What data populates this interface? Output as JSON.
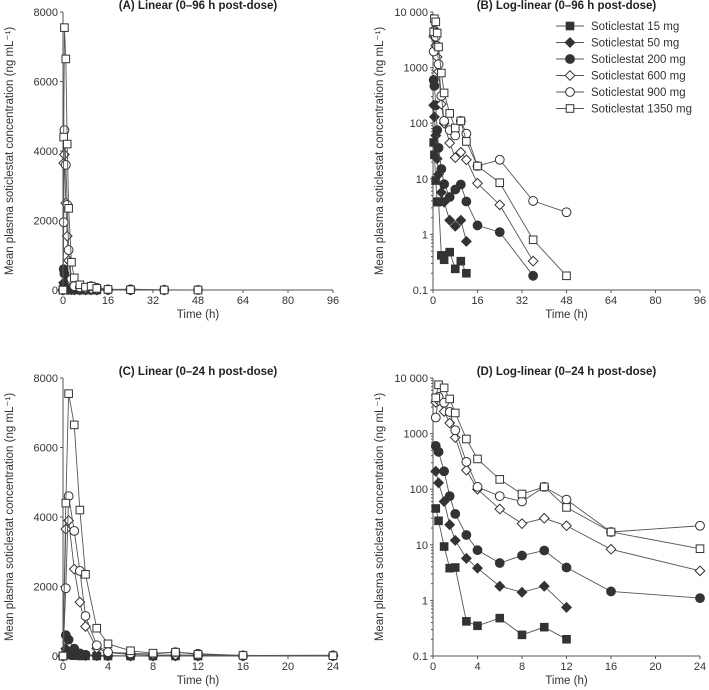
{
  "chart_data": [
    {
      "type": "line",
      "title": "(A) Linear (0–96 h post-dose)",
      "xlabel": "Time (h)",
      "ylabel": "Mean plasma soticlestat concentration (ng mL⁻¹)",
      "scale": "linear",
      "xlim": [
        0,
        96
      ],
      "ylim": [
        0,
        8000
      ],
      "xticks": [
        0,
        16,
        32,
        48,
        64,
        80,
        96
      ],
      "yticks": [
        0,
        2000,
        4000,
        6000,
        8000
      ],
      "ytick_labels": [
        "0",
        "2000",
        "4000",
        "6000",
        "8000"
      ]
    },
    {
      "type": "line",
      "title": "(B) Log-linear (0–96 h post-dose)",
      "xlabel": "Time (h)",
      "ylabel": "Mean plasma soticlestat concentration (ng mL⁻¹)",
      "scale": "log",
      "xlim": [
        0,
        96
      ],
      "ylim": [
        0.1,
        10000
      ],
      "xticks": [
        0,
        16,
        32,
        48,
        64,
        80,
        96
      ],
      "yticks": [
        0.1,
        1,
        10,
        100,
        1000,
        10000
      ],
      "ytick_labels": [
        "0.1",
        "1",
        "10",
        "100",
        "1000",
        "10 000"
      ],
      "legend": "top-right"
    },
    {
      "type": "line",
      "title": "(C) Linear (0–24 h post-dose)",
      "xlabel": "Time (h)",
      "ylabel": "Mean plasma soticlestat concentration (ng mL⁻¹)",
      "scale": "linear",
      "xlim": [
        0,
        24
      ],
      "ylim": [
        0,
        8000
      ],
      "xticks": [
        0,
        4,
        8,
        12,
        16,
        20,
        24
      ],
      "yticks": [
        0,
        2000,
        4000,
        6000,
        8000
      ],
      "ytick_labels": [
        "0",
        "2000",
        "4000",
        "6000",
        "8000"
      ]
    },
    {
      "type": "line",
      "title": "(D) Log-linear (0–24 h post-dose)",
      "xlabel": "Time (h)",
      "ylabel": "Mean plasma soticlestat concentration (ng mL⁻¹)",
      "scale": "log",
      "xlim": [
        0,
        24
      ],
      "ylim": [
        0.1,
        10000
      ],
      "xticks": [
        0,
        4,
        8,
        12,
        16,
        20,
        24
      ],
      "yticks": [
        0.1,
        1,
        10,
        100,
        1000,
        10000
      ],
      "ytick_labels": [
        "0.1",
        "1",
        "10",
        "100",
        "1000",
        "10 000"
      ]
    }
  ],
  "series": [
    {
      "name": "Soticlestat 15 mg",
      "marker": "square",
      "fill": "#333333",
      "x": [
        0,
        0.25,
        0.5,
        1,
        1.5,
        2,
        3,
        4,
        6,
        8,
        10,
        12
      ],
      "y": [
        0,
        45,
        27,
        9.3,
        3.8,
        3.9,
        0.42,
        0.35,
        0.48,
        0.24,
        0.33,
        0.2
      ]
    },
    {
      "name": "Soticlestat 50 mg",
      "marker": "diamond",
      "fill": "#333333",
      "x": [
        0,
        0.25,
        0.5,
        1,
        1.5,
        2,
        3,
        4,
        6,
        8,
        10,
        12
      ],
      "y": [
        0,
        210,
        130,
        60,
        23,
        12,
        5.7,
        3.8,
        1.8,
        1.4,
        1.8,
        0.75
      ]
    },
    {
      "name": "Soticlestat 200 mg",
      "marker": "circle",
      "fill": "#333333",
      "x": [
        0,
        0.25,
        0.5,
        1,
        1.5,
        2,
        3,
        4,
        6,
        8,
        10,
        12,
        16,
        24,
        36
      ],
      "y": [
        0,
        600,
        470,
        210,
        75,
        36,
        15,
        8,
        4.7,
        6.4,
        7.9,
        3.9,
        1.45,
        1.1,
        0.18
      ]
    },
    {
      "name": "Soticlestat 600 mg",
      "marker": "diamond",
      "fill": "#ffffff",
      "x": [
        0,
        0.25,
        0.5,
        1,
        1.5,
        2,
        3,
        4,
        6,
        8,
        10,
        12,
        16,
        24,
        36
      ],
      "y": [
        0,
        3650,
        3900,
        2500,
        1550,
        850,
        220,
        100,
        44,
        24,
        30,
        22,
        8.3,
        3.4,
        0.33
      ]
    },
    {
      "name": "Soticlestat 900 mg",
      "marker": "circle",
      "fill": "#ffffff",
      "x": [
        0,
        0.25,
        0.5,
        1,
        1.5,
        2,
        3,
        4,
        6,
        8,
        10,
        12,
        16,
        24,
        36,
        48
      ],
      "y": [
        0,
        1950,
        4600,
        3600,
        2450,
        1150,
        310,
        110,
        75,
        60,
        110,
        65,
        17,
        22,
        4,
        2.5
      ]
    },
    {
      "name": "Soticlestat 1350 mg",
      "marker": "square",
      "fill": "#ffffff",
      "x": [
        0,
        0.25,
        0.5,
        1,
        1.5,
        2,
        3,
        4,
        6,
        8,
        10,
        12,
        16,
        24,
        36,
        48
      ],
      "y": [
        0,
        4400,
        7550,
        6650,
        4200,
        2350,
        800,
        350,
        150,
        82,
        110,
        47,
        17,
        8.5,
        0.8,
        0.18
      ]
    }
  ]
}
